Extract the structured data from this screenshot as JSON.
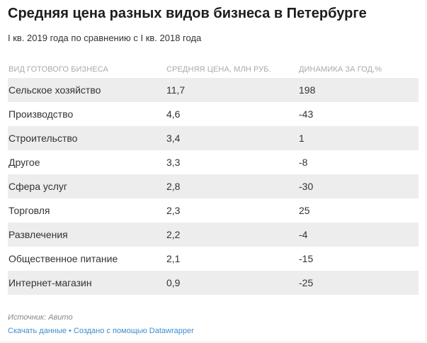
{
  "title": "Средняя цена разных видов бизнеса в Петербурге",
  "subtitle": "I кв. 2019 года по сравнению с I кв. 2018 года",
  "chart_data": {
    "type": "table",
    "columns": [
      "Вид готового бизнеса",
      "Средняя цена, млн руб.",
      "Динамика за год,%"
    ],
    "rows": [
      [
        "Сельское хозяйство",
        "11,7",
        "198"
      ],
      [
        "Производство",
        "4,6",
        "-43"
      ],
      [
        "Строительство",
        "3,4",
        "1"
      ],
      [
        "Другое",
        "3,3",
        "-8"
      ],
      [
        "Сфера услуг",
        "2,8",
        "-30"
      ],
      [
        "Торговля",
        "2,3",
        "25"
      ],
      [
        "Развлечения",
        "2,2",
        "-4"
      ],
      [
        "Общественное питание",
        "2,1",
        "-15"
      ],
      [
        "Интернет-магазин",
        "0,9",
        "-25"
      ]
    ]
  },
  "source": "Источник: Авито",
  "footer": {
    "download_label": "Скачать данные",
    "separator": "•",
    "credit_label": "Создано с помощью Datawrapper"
  }
}
